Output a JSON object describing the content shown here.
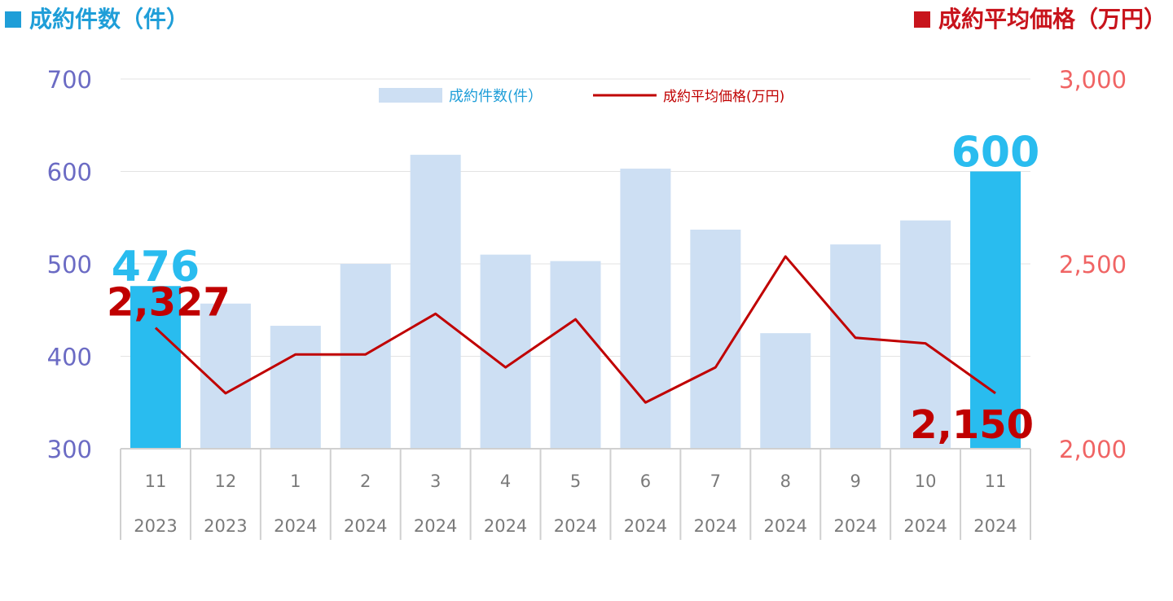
{
  "header": {
    "left_title": "成約件数（件）",
    "right_title": "成約平均価格（万円）"
  },
  "colors": {
    "bar": "#cddff3",
    "bar_highlight": "#29bcef",
    "line": "#c00000",
    "left_axis": "#6b6bc4",
    "right_axis": "#f06464",
    "left_header": "#1f9ed8",
    "right_header": "#c8141c"
  },
  "chart_data": {
    "type": "bar",
    "categories": [
      [
        "11",
        "2023"
      ],
      [
        "12",
        "2023"
      ],
      [
        "1",
        "2024"
      ],
      [
        "2",
        "2024"
      ],
      [
        "3",
        "2024"
      ],
      [
        "4",
        "2024"
      ],
      [
        "5",
        "2024"
      ],
      [
        "6",
        "2024"
      ],
      [
        "7",
        "2024"
      ],
      [
        "8",
        "2024"
      ],
      [
        "9",
        "2024"
      ],
      [
        "10",
        "2024"
      ],
      [
        "11",
        "2024"
      ]
    ],
    "series": [
      {
        "name": "成約件数(件）",
        "type": "bar",
        "axis": "left",
        "values": [
          476,
          457,
          433,
          500,
          618,
          510,
          503,
          603,
          537,
          425,
          521,
          547,
          600
        ],
        "highlight_indices": [
          0,
          12
        ]
      },
      {
        "name": "成約平均価格(万円)",
        "type": "line",
        "axis": "right",
        "values": [
          2327,
          2150,
          2255,
          2255,
          2365,
          2220,
          2350,
          2125,
          2220,
          2520,
          2300,
          2285,
          2150
        ]
      }
    ],
    "left_axis": {
      "range": [
        300,
        700
      ],
      "ticks": [
        "300",
        "400",
        "500",
        "600",
        "700"
      ]
    },
    "right_axis": {
      "range": [
        2000,
        3000
      ],
      "ticks": [
        "2,000",
        "2,500",
        "3,000"
      ]
    },
    "data_labels": [
      {
        "series": 0,
        "index": 0,
        "text": "476"
      },
      {
        "series": 0,
        "index": 12,
        "text": "600"
      },
      {
        "series": 1,
        "index": 0,
        "text": "2,327"
      },
      {
        "series": 1,
        "index": 12,
        "text": "2,150"
      }
    ],
    "grid": true,
    "legend": "top-center"
  }
}
